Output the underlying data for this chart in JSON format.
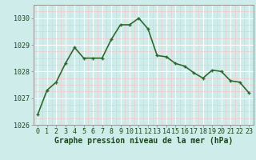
{
  "x": [
    0,
    1,
    2,
    3,
    4,
    5,
    6,
    7,
    8,
    9,
    10,
    11,
    12,
    13,
    14,
    15,
    16,
    17,
    18,
    19,
    20,
    21,
    22,
    23
  ],
  "y": [
    1026.4,
    1027.3,
    1027.6,
    1028.3,
    1028.9,
    1028.5,
    1028.5,
    1028.5,
    1029.2,
    1029.75,
    1029.75,
    1030.0,
    1029.6,
    1028.6,
    1028.55,
    1028.3,
    1028.2,
    1027.95,
    1027.75,
    1028.05,
    1028.0,
    1027.65,
    1027.6,
    1027.2
  ],
  "line_color": "#2d6a2d",
  "marker": "+",
  "marker_size": 3,
  "marker_lw": 1.0,
  "bg_color": "#ceecea",
  "grid_major_color": "#ffffff",
  "grid_minor_color": "#f5c8c8",
  "ylim": [
    1026,
    1030.5
  ],
  "yticks": [
    1026,
    1027,
    1028,
    1029,
    1030
  ],
  "xlabel": "Graphe pression niveau de la mer (hPa)",
  "xlabel_fontsize": 7,
  "tick_fontsize": 6,
  "line_width": 1.2,
  "spine_color": "#888888"
}
